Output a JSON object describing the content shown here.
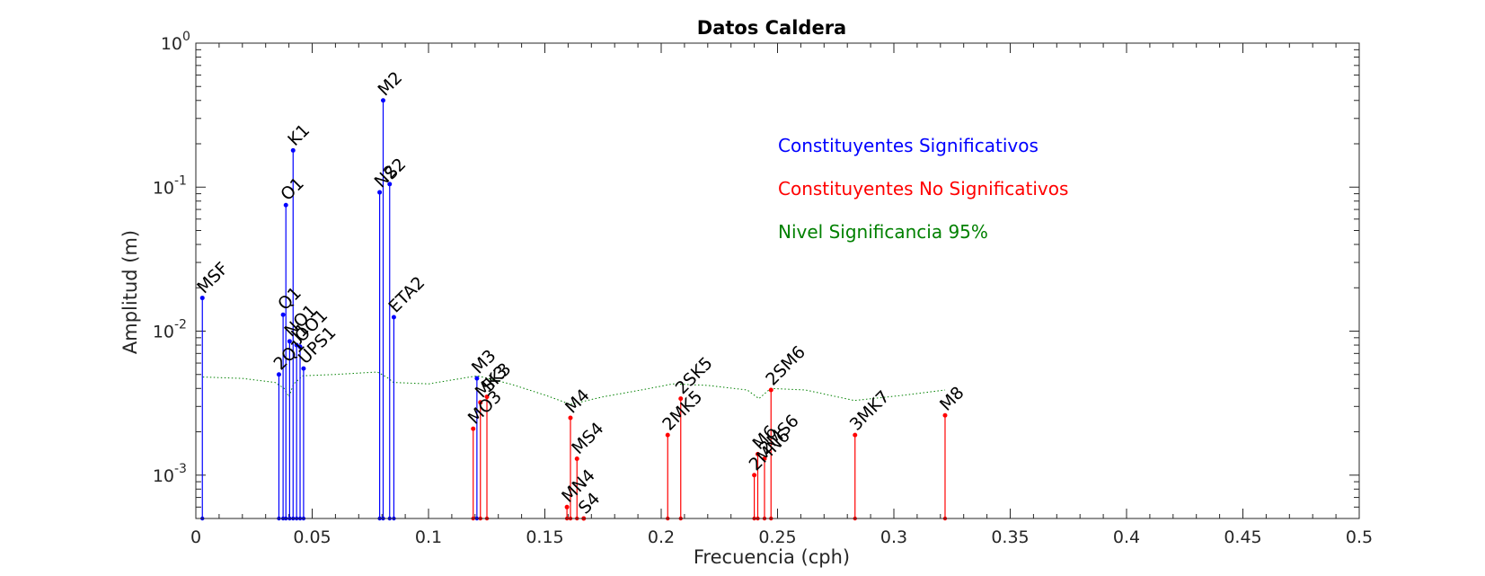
{
  "chart_data": {
    "type": "stem",
    "title": "Datos Caldera",
    "xlabel": "Frecuencia (cph)",
    "ylabel": "Amplitud (m)",
    "x_scale": "linear",
    "y_scale": "log",
    "xlim": [
      0,
      0.5
    ],
    "ylim": [
      0.0005,
      1
    ],
    "x_ticks": [
      0,
      0.05,
      0.1,
      0.15,
      0.2,
      0.25,
      0.3,
      0.35,
      0.4,
      0.45,
      0.5
    ],
    "x_tick_labels": [
      "0",
      "0.05",
      "0.1",
      "0.15",
      "0.2",
      "0.25",
      "0.3",
      "0.35",
      "0.4",
      "0.45",
      "0.5"
    ],
    "y_ticks": [
      0.001,
      0.01,
      0.1,
      1
    ],
    "y_tick_labels": [
      {
        "base": "10",
        "exp": "-3"
      },
      {
        "base": "10",
        "exp": "-2"
      },
      {
        "base": "10",
        "exp": "-1"
      },
      {
        "base": "10",
        "exp": "0"
      }
    ],
    "legend": {
      "placement": "top-right",
      "entries": [
        {
          "label": "Constituyentes Significativos",
          "color": "#0000ff"
        },
        {
          "label": "Constituyentes No Significativos",
          "color": "#ff0000"
        },
        {
          "label": "Nivel Significancia 95%",
          "color": "#008000"
        }
      ]
    },
    "colors": {
      "significant": "#0000ff",
      "non_significant": "#ff0000",
      "significance_line": "#008000"
    },
    "series": [
      {
        "name": "Constituyentes Significativos",
        "points": [
          {
            "label": "MSF",
            "x": 0.0028,
            "y": 0.017
          },
          {
            "label": "2Q1",
            "x": 0.0357,
            "y": 0.005
          },
          {
            "label": "Q1",
            "x": 0.0375,
            "y": 0.013
          },
          {
            "label": "O1",
            "x": 0.0387,
            "y": 0.075
          },
          {
            "label": "NO1",
            "x": 0.0403,
            "y": 0.0085
          },
          {
            "label": "K1",
            "x": 0.0418,
            "y": 0.18
          },
          {
            "label": "J1",
            "x": 0.0433,
            "y": 0.008
          },
          {
            "label": "OO1",
            "x": 0.0448,
            "y": 0.0078
          },
          {
            "label": "UPS1",
            "x": 0.0463,
            "y": 0.0055
          },
          {
            "label": "N2",
            "x": 0.079,
            "y": 0.092
          },
          {
            "label": "M2",
            "x": 0.0805,
            "y": 0.4
          },
          {
            "label": "S2",
            "x": 0.0833,
            "y": 0.105
          },
          {
            "label": "ETA2",
            "x": 0.0851,
            "y": 0.0125
          },
          {
            "label": "M3",
            "x": 0.1208,
            "y": 0.0047
          }
        ]
      },
      {
        "name": "Constituyentes No Significativos",
        "points": [
          {
            "label": "MO3",
            "x": 0.1192,
            "y": 0.0021
          },
          {
            "label": "MK3",
            "x": 0.1223,
            "y": 0.0032
          },
          {
            "label": "SK3",
            "x": 0.1251,
            "y": 0.0035
          },
          {
            "label": "MN4",
            "x": 0.1595,
            "y": 0.0006
          },
          {
            "label": "M4",
            "x": 0.161,
            "y": 0.0025
          },
          {
            "label": "MS4",
            "x": 0.1638,
            "y": 0.0013
          },
          {
            "label": "S4",
            "x": 0.1667,
            "y": 0.0005
          },
          {
            "label": "2MK5",
            "x": 0.2028,
            "y": 0.0019
          },
          {
            "label": "2SK5",
            "x": 0.2084,
            "y": 0.0034
          },
          {
            "label": "2MN6",
            "x": 0.24,
            "y": 0.001
          },
          {
            "label": "M6",
            "x": 0.2415,
            "y": 0.0014
          },
          {
            "label": "2MS6",
            "x": 0.2444,
            "y": 0.0013
          },
          {
            "label": "2SM6",
            "x": 0.2472,
            "y": 0.0039
          },
          {
            "label": "3MK7",
            "x": 0.2833,
            "y": 0.0019
          },
          {
            "label": "M8",
            "x": 0.322,
            "y": 0.0026
          }
        ]
      },
      {
        "name": "Nivel Significancia 95%",
        "points": [
          {
            "x": 0.003,
            "y": 0.0048
          },
          {
            "x": 0.02,
            "y": 0.0047
          },
          {
            "x": 0.034,
            "y": 0.0044
          },
          {
            "x": 0.038,
            "y": 0.004
          },
          {
            "x": 0.04,
            "y": 0.0035
          },
          {
            "x": 0.042,
            "y": 0.0043
          },
          {
            "x": 0.046,
            "y": 0.0049
          },
          {
            "x": 0.06,
            "y": 0.005
          },
          {
            "x": 0.078,
            "y": 0.0052
          },
          {
            "x": 0.082,
            "y": 0.0048
          },
          {
            "x": 0.085,
            "y": 0.0044
          },
          {
            "x": 0.1,
            "y": 0.0043
          },
          {
            "x": 0.121,
            "y": 0.0049
          },
          {
            "x": 0.135,
            "y": 0.0043
          },
          {
            "x": 0.15,
            "y": 0.0036
          },
          {
            "x": 0.161,
            "y": 0.0031
          },
          {
            "x": 0.175,
            "y": 0.0035
          },
          {
            "x": 0.195,
            "y": 0.004
          },
          {
            "x": 0.205,
            "y": 0.0043
          },
          {
            "x": 0.22,
            "y": 0.0042
          },
          {
            "x": 0.237,
            "y": 0.0039
          },
          {
            "x": 0.242,
            "y": 0.0034
          },
          {
            "x": 0.247,
            "y": 0.004
          },
          {
            "x": 0.262,
            "y": 0.0039
          },
          {
            "x": 0.283,
            "y": 0.0033
          },
          {
            "x": 0.305,
            "y": 0.0036
          },
          {
            "x": 0.322,
            "y": 0.0039
          }
        ]
      }
    ]
  }
}
